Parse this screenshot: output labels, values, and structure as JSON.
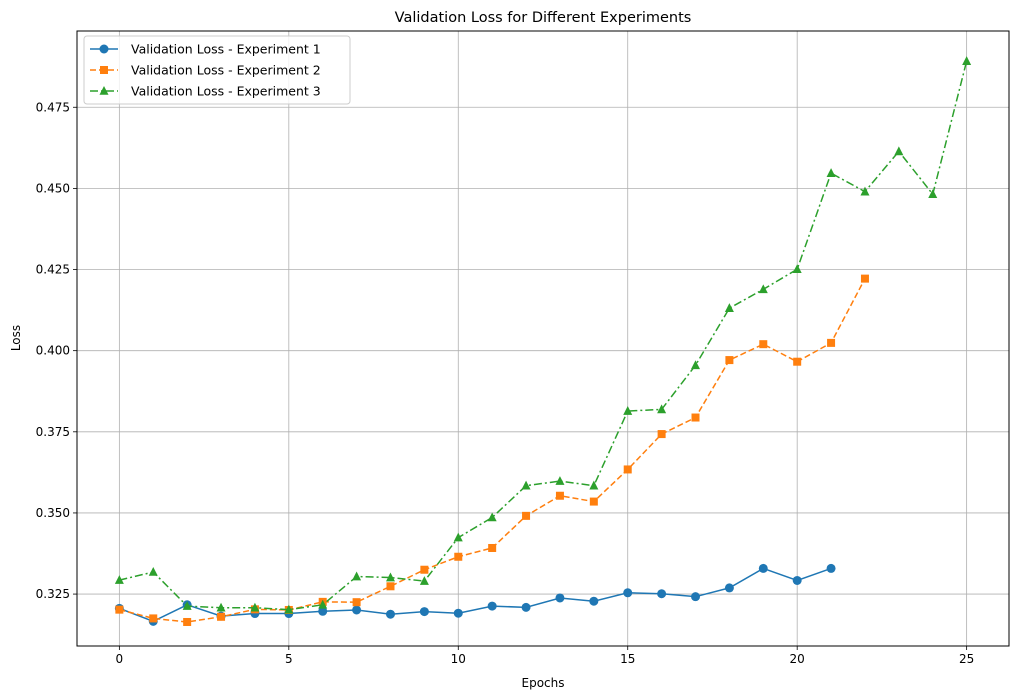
{
  "chart_data": {
    "type": "line",
    "title": "Validation Loss for Different Experiments",
    "xlabel": "Epochs",
    "ylabel": "Loss",
    "xlim": [
      -1.25,
      26.25
    ],
    "ylim": [
      0.309,
      0.4985
    ],
    "xticks": [
      0,
      5,
      10,
      15,
      20,
      25
    ],
    "xtick_labels": [
      "0",
      "5",
      "10",
      "15",
      "20",
      "25"
    ],
    "yticks": [
      0.325,
      0.35,
      0.375,
      0.4,
      0.425,
      0.45,
      0.475
    ],
    "ytick_labels": [
      "0.325",
      "0.350",
      "0.375",
      "0.400",
      "0.425",
      "0.450",
      "0.475"
    ],
    "grid": true,
    "legend_position": "top-left",
    "series": [
      {
        "name": "Validation Loss - Experiment 1",
        "color": "#1f77b4",
        "marker": "circle",
        "linestyle": "solid",
        "x": [
          0,
          1,
          2,
          3,
          4,
          5,
          6,
          7,
          8,
          9,
          10,
          11,
          12,
          13,
          14,
          15,
          16,
          17,
          18,
          19,
          20,
          21
        ],
        "values": [
          0.3206,
          0.3166,
          0.3217,
          0.3182,
          0.319,
          0.319,
          0.3197,
          0.3201,
          0.3188,
          0.3196,
          0.3191,
          0.3213,
          0.3209,
          0.3238,
          0.3228,
          0.3254,
          0.3251,
          0.3242,
          0.3269,
          0.3329,
          0.3292,
          0.3329
        ]
      },
      {
        "name": "Validation Loss - Experiment 2",
        "color": "#ff7f0e",
        "marker": "square",
        "linestyle": "dashed",
        "x": [
          0,
          1,
          2,
          3,
          4,
          5,
          6,
          7,
          8,
          9,
          10,
          11,
          12,
          13,
          14,
          15,
          16,
          17,
          18,
          19,
          20,
          21,
          22
        ],
        "values": [
          0.3202,
          0.3175,
          0.3164,
          0.318,
          0.3203,
          0.3201,
          0.3226,
          0.3225,
          0.3274,
          0.3325,
          0.3365,
          0.3392,
          0.3491,
          0.3553,
          0.3535,
          0.3634,
          0.3743,
          0.3794,
          0.3971,
          0.402,
          0.3966,
          0.4024,
          0.4222
        ]
      },
      {
        "name": "Validation Loss - Experiment 3",
        "color": "#2ca02c",
        "marker": "triangle",
        "linestyle": "dashdot",
        "x": [
          0,
          1,
          2,
          3,
          4,
          5,
          6,
          7,
          8,
          9,
          10,
          11,
          12,
          13,
          14,
          15,
          16,
          17,
          18,
          19,
          20,
          21,
          22,
          23,
          24,
          25
        ],
        "values": [
          0.3293,
          0.3318,
          0.3213,
          0.3208,
          0.3208,
          0.3202,
          0.3217,
          0.3304,
          0.3301,
          0.329,
          0.3424,
          0.3486,
          0.3584,
          0.3598,
          0.3584,
          0.3814,
          0.3819,
          0.3955,
          0.4131,
          0.4189,
          0.4251,
          0.4547,
          0.449,
          0.4614,
          0.4482,
          0.4892
        ]
      }
    ]
  }
}
